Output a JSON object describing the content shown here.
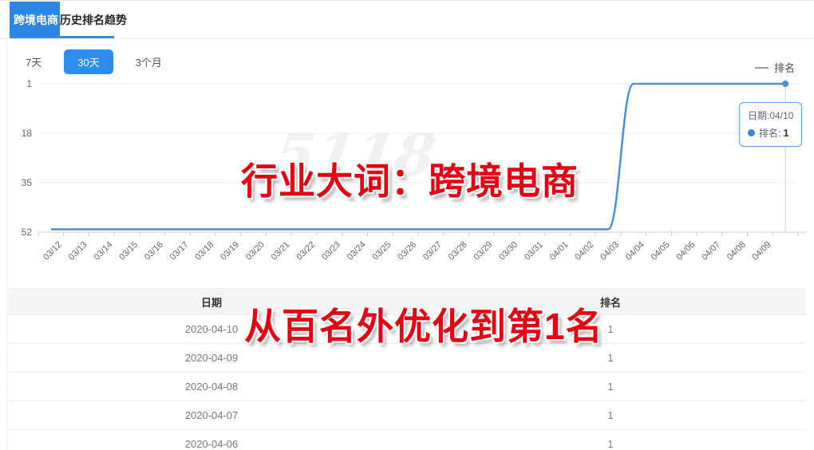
{
  "header": {
    "keyword_highlight": "跨境电商",
    "tab_title": "历史排名趋势"
  },
  "filters": {
    "items": [
      {
        "label": "7天",
        "selected": false
      },
      {
        "label": "30天",
        "selected": true
      },
      {
        "label": "3个月",
        "selected": false
      }
    ]
  },
  "legend": {
    "series_label": "排名"
  },
  "tooltip": {
    "date_line": "日期:04/10",
    "rank_label": "排名:",
    "rank_value": "1"
  },
  "overlays": {
    "chart_annotation": "行业大词：跨境电商",
    "table_annotation": "从百名外优化到第1名",
    "watermark": "5118"
  },
  "chart_data": {
    "type": "line",
    "title": "历史排名趋势",
    "x": [
      "03/12",
      "03/13",
      "03/14",
      "03/15",
      "03/16",
      "03/17",
      "03/18",
      "03/19",
      "03/20",
      "03/21",
      "03/22",
      "03/23",
      "03/24",
      "03/25",
      "03/26",
      "03/27",
      "03/28",
      "03/29",
      "03/30",
      "03/31",
      "04/01",
      "04/02",
      "04/03",
      "04/04",
      "04/05",
      "04/06",
      "04/07",
      "04/08",
      "04/09",
      "04/10"
    ],
    "series": [
      {
        "name": "排名",
        "values": [
          51,
          51,
          51,
          51,
          51,
          51,
          51,
          51,
          51,
          51,
          51,
          51,
          51,
          51,
          51,
          51,
          51,
          51,
          51,
          51,
          51,
          51,
          51,
          1,
          1,
          1,
          1,
          1,
          1,
          1
        ]
      }
    ],
    "xlabel": "",
    "ylabel": "",
    "y_ticks": [
      1,
      18,
      35,
      52
    ],
    "ylim": [
      1,
      52
    ],
    "y_inverted": true,
    "grid": true,
    "legend_position": "top-right",
    "highlighted_point": {
      "x": "04/10",
      "value": 1
    }
  },
  "table": {
    "headers": [
      "日期",
      "排名"
    ],
    "rows": [
      [
        "2020-04-10",
        "1"
      ],
      [
        "2020-04-09",
        "1"
      ],
      [
        "2020-04-08",
        "1"
      ],
      [
        "2020-04-07",
        "1"
      ],
      [
        "2020-04-06",
        "1"
      ]
    ]
  },
  "colors": {
    "accent_blue": "#2d8cf0",
    "highlight_blue": "#2b85e4",
    "line_blue": "#4a90d9",
    "tooltip_border": "#57a3f3",
    "annotation_red": "#e60012",
    "grid_line": "#ebebeb",
    "axis_line": "#cccccc"
  }
}
